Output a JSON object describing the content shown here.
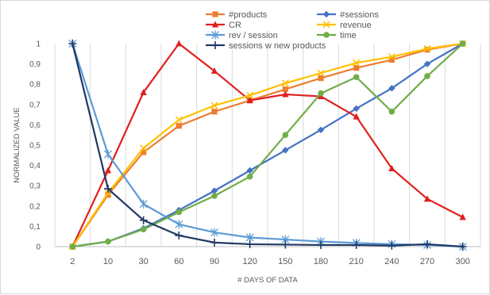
{
  "chart_data": {
    "type": "line",
    "title": "",
    "xlabel": "# DAYS OF DATA",
    "ylabel": "NORMALIZED VALUE",
    "categories": [
      "2",
      "10",
      "30",
      "60",
      "90",
      "120",
      "150",
      "180",
      "210",
      "240",
      "270",
      "300"
    ],
    "ylim": [
      0,
      1
    ],
    "yticks": [
      "0",
      "0,1",
      "0,2",
      "0,3",
      "0,4",
      "0,5",
      "0,6",
      "0,7",
      "0,8",
      "0,9",
      "1"
    ],
    "grid": "vertical",
    "legend_position": "top-right",
    "series": [
      {
        "name": "#products",
        "color": "#ed7d31",
        "marker": "square",
        "values": [
          0.0,
          0.255,
          0.465,
          0.595,
          0.665,
          0.72,
          0.775,
          0.83,
          0.88,
          0.92,
          0.97,
          1.0
        ]
      },
      {
        "name": "#sessions",
        "color": "#4472c4",
        "marker": "diamond",
        "values": [
          0.0,
          0.025,
          0.09,
          0.18,
          0.275,
          0.375,
          0.475,
          0.575,
          0.68,
          0.78,
          0.9,
          1.0
        ]
      },
      {
        "name": "CR",
        "color": "#e02020",
        "marker": "triangle",
        "values": [
          0.0,
          0.375,
          0.76,
          1.0,
          0.865,
          0.72,
          0.75,
          0.74,
          0.64,
          0.385,
          0.235,
          0.145
        ]
      },
      {
        "name": "revenue",
        "color": "#ffc000",
        "marker": "x",
        "values": [
          0.0,
          0.265,
          0.485,
          0.625,
          0.695,
          0.745,
          0.805,
          0.855,
          0.905,
          0.935,
          0.975,
          1.0
        ]
      },
      {
        "name": "rev / session",
        "color": "#5b9bd5",
        "marker": "star",
        "values": [
          1.0,
          0.455,
          0.21,
          0.11,
          0.07,
          0.045,
          0.035,
          0.025,
          0.018,
          0.012,
          0.008,
          0.0
        ]
      },
      {
        "name": "time",
        "color": "#70ad47",
        "marker": "circle",
        "values": [
          0.0,
          0.025,
          0.085,
          0.17,
          0.25,
          0.345,
          0.55,
          0.755,
          0.835,
          0.665,
          0.84,
          1.0
        ]
      },
      {
        "name": "sessions w new products",
        "color": "#203864",
        "marker": "plus",
        "values": [
          1.0,
          0.285,
          0.13,
          0.055,
          0.02,
          0.012,
          0.01,
          0.008,
          0.008,
          0.005,
          0.012,
          0.0
        ]
      }
    ]
  }
}
